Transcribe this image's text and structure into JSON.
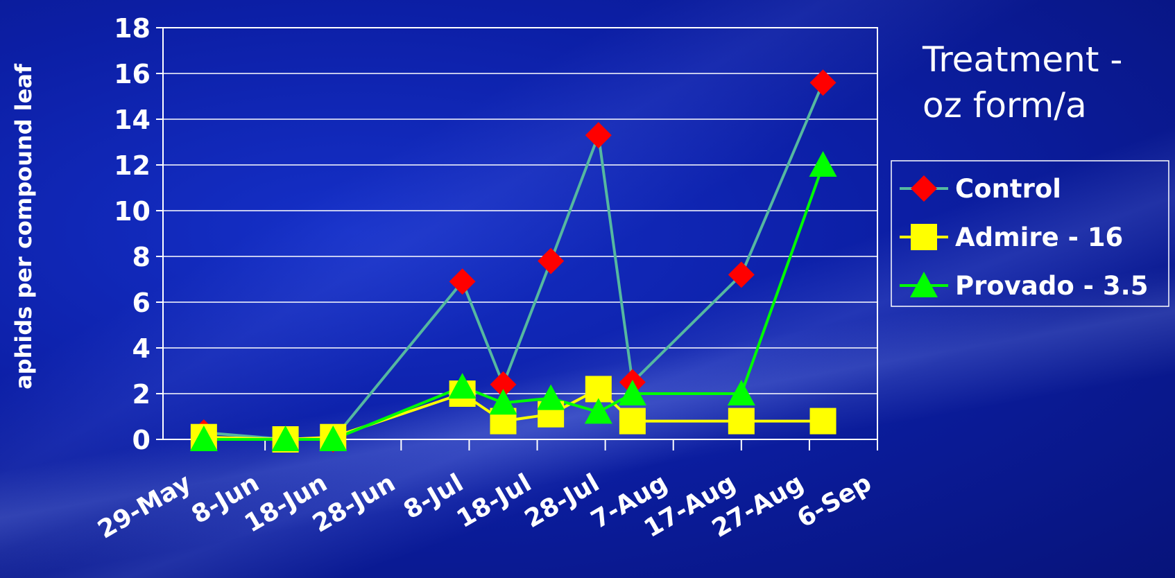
{
  "chart_data": {
    "type": "line",
    "ylabel": "aphids per compound leaf",
    "ylim": [
      0,
      18
    ],
    "yticks": [
      "0",
      "2",
      "4",
      "6",
      "8",
      "10",
      "12",
      "14",
      "16",
      "18"
    ],
    "xticks": [
      "29-May",
      "8-Jun",
      "18-Jun",
      "28-Jun",
      "8-Jul",
      "18-Jul",
      "28-Jul",
      "7-Aug",
      "17-Aug",
      "27-Aug",
      "6-Sep"
    ],
    "grid": true,
    "legend": {
      "title_lines": [
        "Treatment -",
        "oz form/a"
      ],
      "placement": "right"
    },
    "series": [
      {
        "name": "Control",
        "line_color": "#55b8a0",
        "marker": "diamond",
        "marker_color": "#ff0000",
        "points": [
          [
            "30-May",
            0.3
          ],
          [
            "11-Jun",
            0.0
          ],
          [
            "18-Jun",
            0.0
          ],
          [
            "7-Jul",
            6.9
          ],
          [
            "13-Jul",
            2.4
          ],
          [
            "20-Jul",
            7.8
          ],
          [
            "27-Jul",
            13.3
          ],
          [
            "1-Aug",
            2.5
          ],
          [
            "17-Aug",
            7.2
          ],
          [
            "29-Aug",
            15.6
          ]
        ]
      },
      {
        "name": "Admire - 16",
        "line_color": "#ffff00",
        "marker": "square",
        "marker_color": "#ffff00",
        "points": [
          [
            "30-May",
            0.1
          ],
          [
            "11-Jun",
            0.0
          ],
          [
            "18-Jun",
            0.1
          ],
          [
            "7-Jul",
            2.0
          ],
          [
            "13-Jul",
            0.8
          ],
          [
            "20-Jul",
            1.1
          ],
          [
            "27-Jul",
            2.2
          ],
          [
            "1-Aug",
            0.8
          ],
          [
            "17-Aug",
            0.8
          ],
          [
            "29-Aug",
            0.8
          ]
        ]
      },
      {
        "name": "Provado - 3.5",
        "line_color": "#00ff00",
        "marker": "triangle",
        "marker_color": "#00ff00",
        "points": [
          [
            "30-May",
            0.0
          ],
          [
            "11-Jun",
            0.0
          ],
          [
            "18-Jun",
            0.0
          ],
          [
            "7-Jul",
            2.3
          ],
          [
            "13-Jul",
            1.6
          ],
          [
            "20-Jul",
            1.8
          ],
          [
            "27-Jul",
            1.2
          ],
          [
            "1-Aug",
            2.0
          ],
          [
            "17-Aug",
            2.0
          ],
          [
            "29-Aug",
            12.0
          ]
        ]
      }
    ]
  }
}
